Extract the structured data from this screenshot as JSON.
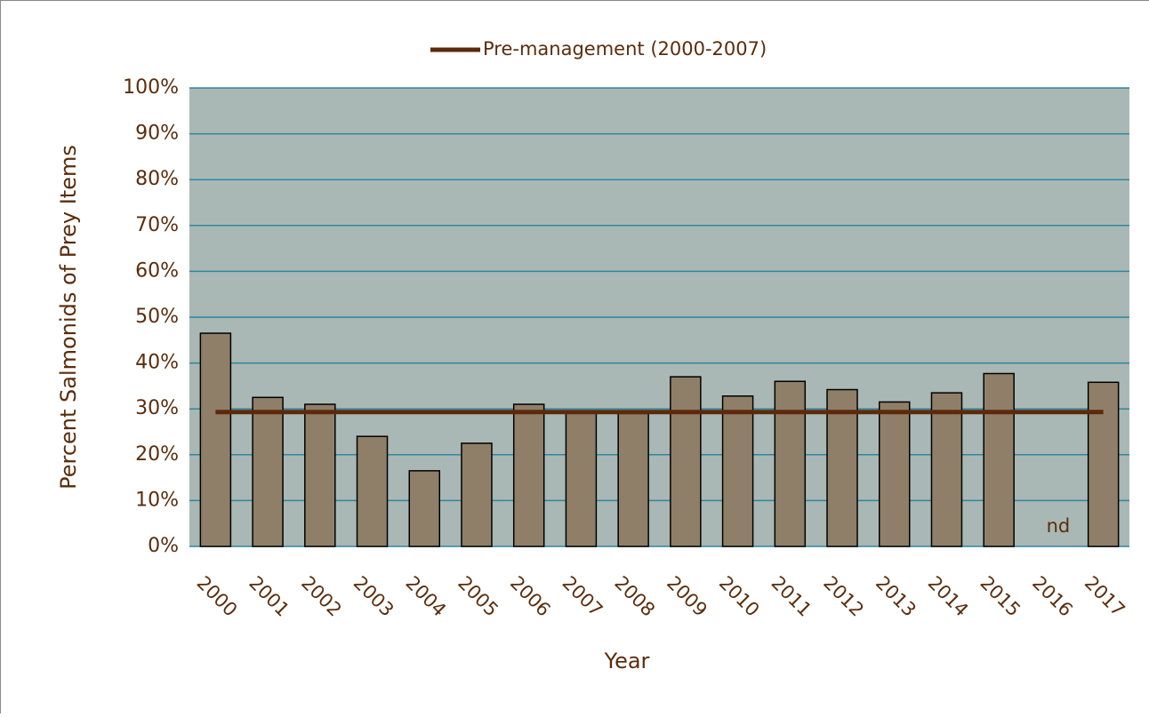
{
  "chart_data": {
    "type": "bar",
    "x_label": "Year",
    "y_label": "Percent Salmonids of Prey Items",
    "categories": [
      "2000",
      "2001",
      "2002",
      "2003",
      "2004",
      "2005",
      "2006",
      "2007",
      "2008",
      "2009",
      "2010",
      "2011",
      "2012",
      "2013",
      "2014",
      "2015",
      "2016",
      "2017"
    ],
    "values": [
      46.5,
      32.5,
      31,
      24,
      16.5,
      22.5,
      31,
      29.5,
      29,
      37,
      32.8,
      36,
      34.2,
      31.5,
      33.5,
      37.7,
      null,
      35.8
    ],
    "color": "#8f7f69",
    "annotation": "nd",
    "reference_line": {
      "name": "Pre-management (2000-2007)",
      "value": 29.3,
      "color": "#5c2a0a"
    },
    "ylim": [
      0,
      100
    ],
    "yticks": [
      {
        "value": 0,
        "label": "0%"
      },
      {
        "value": 10,
        "label": "10%"
      },
      {
        "value": 20,
        "label": "20%"
      },
      {
        "value": 30,
        "label": "30%"
      },
      {
        "value": 40,
        "label": "40%"
      },
      {
        "value": 50,
        "label": "50%"
      },
      {
        "value": 60,
        "label": "60%"
      },
      {
        "value": 70,
        "label": "70%"
      },
      {
        "value": 80,
        "label": "80%"
      },
      {
        "value": 90,
        "label": "90%"
      },
      {
        "value": 100,
        "label": "100%"
      }
    ],
    "grid": true,
    "legend": "top"
  }
}
